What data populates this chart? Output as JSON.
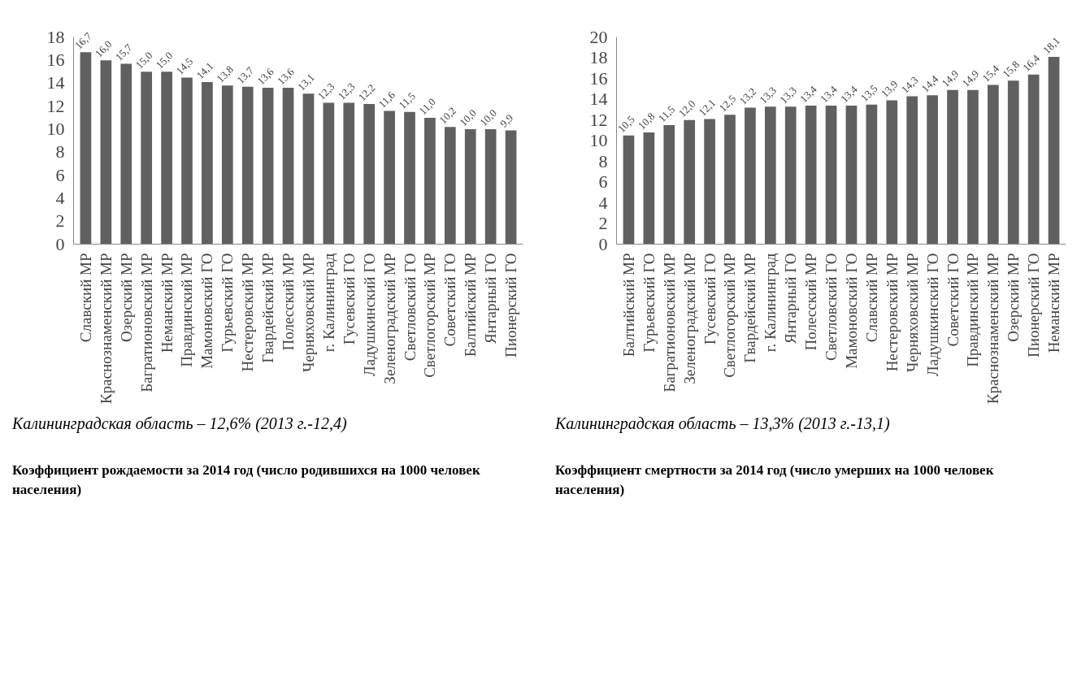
{
  "chart_data": [
    {
      "type": "bar",
      "title": "Коэффициент рождаемости за 2014 год (число родившихся на 1000 человек населения)",
      "annotations": [
        "Калининградская область – 12,6% (2013 г.-12,4)"
      ],
      "categories": [
        "Славский МР",
        "Краснознаменский МР",
        "Озерский МР",
        "Багратионовский МР",
        "Неманский МР",
        "Правдинский МР",
        "Мамоновский ГО",
        "Гурьевский ГО",
        "Нестеровский МР",
        "Гвардейский МР",
        "Полесский МР",
        "Черняховский МР",
        "г. Калининград",
        "Гусевский ГО",
        "Ладушкинский ГО",
        "Зеленоградский МР",
        "Светловский ГО",
        "Светлогорский МР",
        "Советский ГО",
        "Балтийский МР",
        "Янтарный ГО",
        "Пионерский ГО"
      ],
      "values": [
        16.7,
        16.0,
        15.7,
        15.0,
        15.0,
        14.5,
        14.1,
        13.8,
        13.7,
        13.6,
        13.6,
        13.1,
        12.3,
        12.3,
        12.2,
        11.6,
        11.5,
        11.0,
        10.2,
        10.0,
        10.0,
        9.9
      ],
      "value_labels": [
        "16,7",
        "16,0",
        "15,7",
        "15,0",
        "15,0",
        "14,5",
        "14,1",
        "13,8",
        "13,7",
        "13,6",
        "13,6",
        "13,1",
        "12,3",
        "12,3",
        "12,2",
        "11,6",
        "11,5",
        "11,0",
        "10,2",
        "10,0",
        "10,0",
        "9,9"
      ],
      "color": "#606060",
      "ylim": [
        0,
        18
      ],
      "yticks": [
        0,
        2,
        4,
        6,
        8,
        10,
        12,
        14,
        16,
        18
      ],
      "grid": false
    },
    {
      "type": "bar",
      "title": "Коэффициент смертности за 2014 год (число умерших на 1000 человек населения)",
      "annotations": [
        "Калининградская область – 13,3% (2013 г.-13,1)"
      ],
      "categories": [
        "Балтийский МР",
        "Гурьевский ГО",
        "Багратионовский МР",
        "Зеленоградский МР",
        "Гусевский ГО",
        "Светлогорский МР",
        "Гвардейский МР",
        "г. Калининград",
        "Янтарный ГО",
        "Полесский МР",
        "Светловский ГО",
        "Мамоновский ГО",
        "Славский МР",
        "Нестеровский МР",
        "Черняховский МР",
        "Ладушкинский ГО",
        "Советский ГО",
        "Правдинский МР",
        "Краснознаменский МР",
        "Озерский МР",
        "Пионерский ГО",
        "Неманский МР"
      ],
      "values": [
        10.5,
        10.8,
        11.5,
        12.0,
        12.1,
        12.5,
        13.2,
        13.3,
        13.3,
        13.4,
        13.4,
        13.4,
        13.5,
        13.9,
        14.3,
        14.4,
        14.9,
        14.9,
        15.4,
        15.8,
        16.4,
        18.1
      ],
      "value_labels": [
        "10,5",
        "10,8",
        "11,5",
        "12,0",
        "12,1",
        "12,5",
        "13,2",
        "13,3",
        "13,3",
        "13,4",
        "13,4",
        "13,4",
        "13,5",
        "13,9",
        "14,3",
        "14,4",
        "14,9",
        "14,9",
        "15,4",
        "15,8",
        "16,4",
        "18,1"
      ],
      "color": "#606060",
      "ylim": [
        0,
        20
      ],
      "yticks": [
        0,
        2,
        4,
        6,
        8,
        10,
        12,
        14,
        16,
        18,
        20
      ],
      "grid": false
    }
  ]
}
